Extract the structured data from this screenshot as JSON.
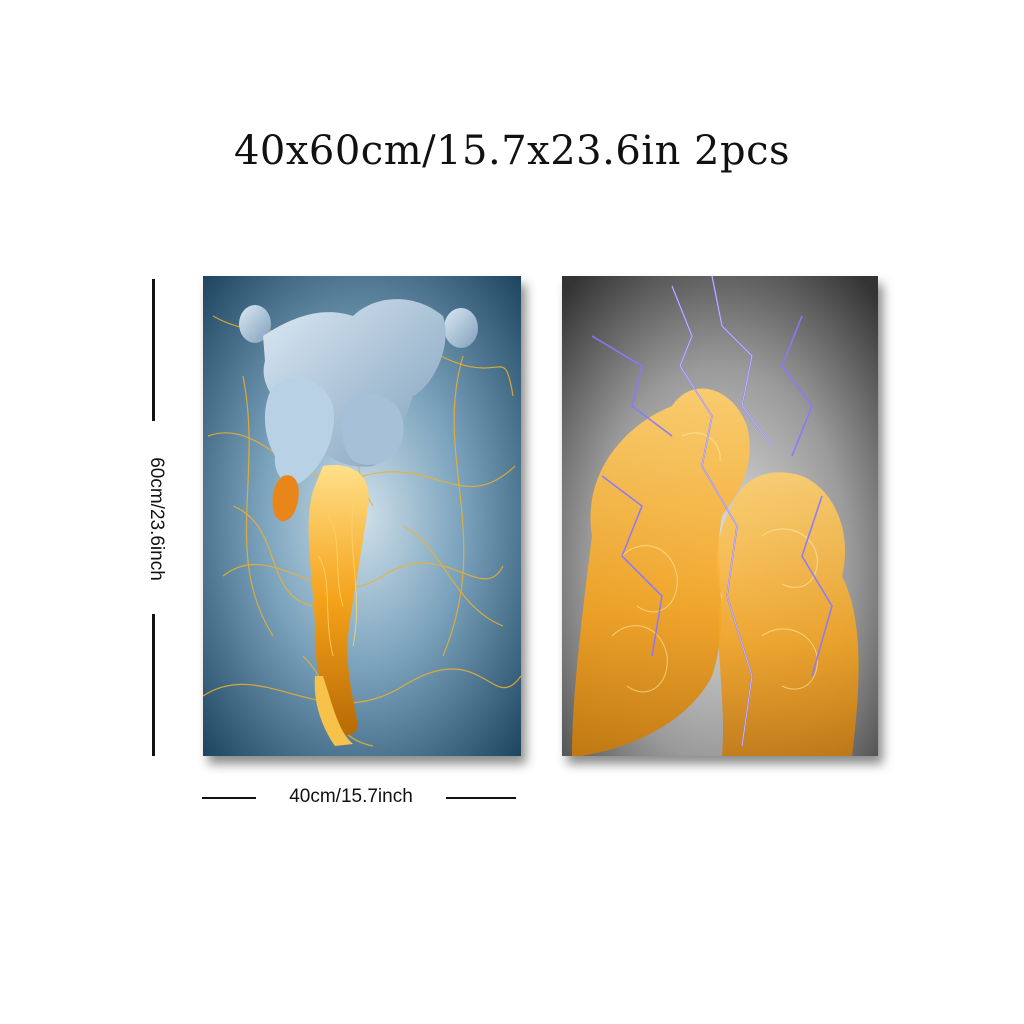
{
  "header": {
    "title": "40x60cm/15.7x23.6in 2pcs"
  },
  "dimensions": {
    "height_label": "60cm/23.6inch",
    "width_label": "40cm/15.7inch"
  },
  "colors": {
    "left_bg_center": "#c9dbe6",
    "left_bg_edge": "#2a4f66",
    "gold": "#f2a81c",
    "figure_blue": "#a9c6dd",
    "right_bg_center": "#dcdcdc",
    "right_bg_edge": "#3b3b3b",
    "lightning": "#7d6bff"
  },
  "panels": [
    {
      "name": "blue-gold-figure-print"
    },
    {
      "name": "golden-embracing-couple-print"
    }
  ]
}
